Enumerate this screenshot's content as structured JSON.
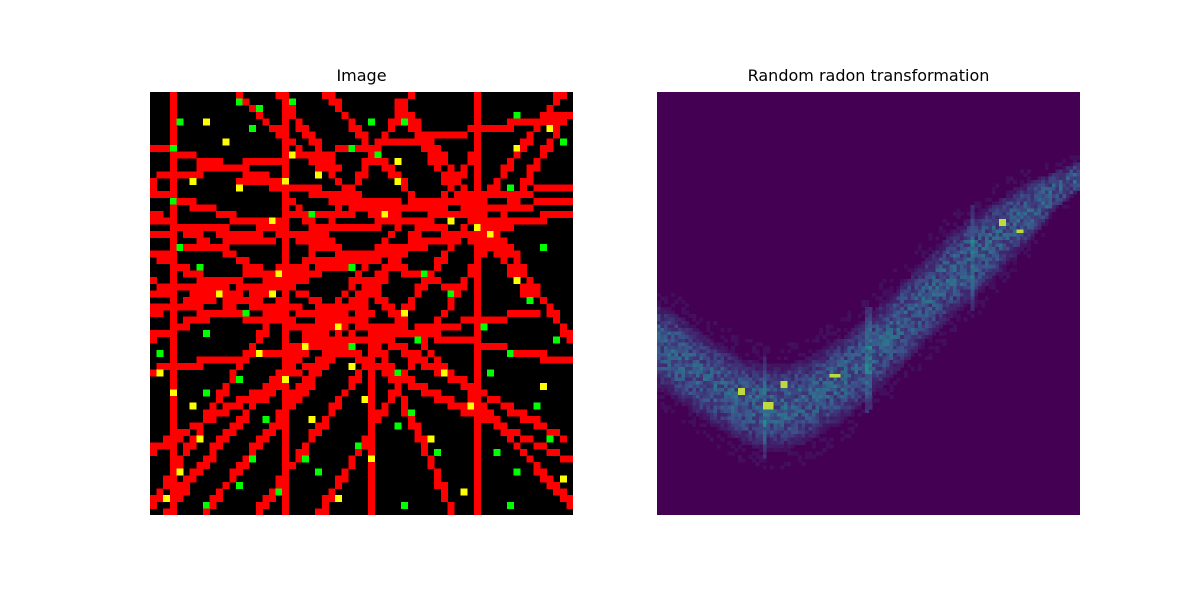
{
  "chart_data": [
    {
      "type": "heatmap",
      "title": "Image",
      "grid_size": 64,
      "colors": {
        "background": "#000000",
        "line": "#ff0000",
        "point": "#00ff00",
        "intersection": "#ffff00"
      },
      "lines": [
        [
          0.0,
          0.98,
          0.62,
          0.0
        ],
        [
          0.03,
          1.0,
          0.6,
          0.3
        ],
        [
          0.07,
          0.93,
          0.57,
          0.4
        ],
        [
          0.12,
          1.0,
          0.52,
          0.52
        ],
        [
          0.22,
          0.88,
          0.78,
          0.13
        ],
        [
          0.25,
          1.0,
          0.98,
          0.0
        ],
        [
          0.4,
          1.0,
          1.0,
          0.04
        ],
        [
          0.0,
          0.2,
          1.0,
          0.05
        ],
        [
          0.0,
          0.33,
          1.0,
          0.22
        ],
        [
          0.0,
          0.38,
          1.0,
          0.25
        ],
        [
          0.0,
          0.48,
          1.0,
          0.28
        ],
        [
          0.0,
          0.52,
          0.8,
          0.32
        ],
        [
          0.0,
          0.58,
          0.48,
          0.39
        ],
        [
          0.0,
          0.66,
          0.92,
          0.52
        ],
        [
          0.0,
          0.12,
          0.88,
          0.38
        ],
        [
          0.0,
          0.23,
          0.72,
          0.46
        ],
        [
          0.0,
          0.38,
          1.0,
          0.88
        ],
        [
          0.0,
          0.28,
          0.98,
          0.82
        ],
        [
          0.0,
          0.45,
          1.0,
          0.64
        ],
        [
          0.3,
          0.22,
          1.0,
          0.98
        ],
        [
          0.0,
          0.5,
          0.4,
          0.56
        ],
        [
          0.2,
          0.0,
          0.53,
          0.28
        ],
        [
          0.3,
          0.0,
          0.44,
          0.18
        ],
        [
          0.42,
          0.0,
          0.63,
          0.25
        ],
        [
          0.58,
          0.02,
          0.9,
          0.48
        ],
        [
          0.62,
          0.05,
          1.0,
          0.58
        ],
        [
          0.2,
          0.2,
          0.84,
          0.3
        ],
        [
          0.0,
          0.3,
          0.25,
          0.34
        ],
        [
          0.0,
          0.85,
          0.43,
          0.62
        ],
        [
          0.04,
          0.0,
          0.04,
          1.0
        ],
        [
          0.31,
          0.0,
          0.31,
          1.0
        ],
        [
          0.78,
          0.0,
          0.78,
          1.0
        ],
        [
          0.53,
          0.58,
          0.53,
          1.0
        ],
        [
          0.53,
          0.58,
          0.72,
          1.0
        ]
      ],
      "points": [
        [
          0.21,
          0.02,
          "g"
        ],
        [
          0.25,
          0.03,
          "g"
        ],
        [
          0.33,
          0.01,
          "g"
        ],
        [
          0.07,
          0.06,
          "g"
        ],
        [
          0.12,
          0.07,
          "y"
        ],
        [
          0.24,
          0.08,
          "g"
        ],
        [
          0.52,
          0.06,
          "g"
        ],
        [
          0.61,
          0.07,
          "g"
        ],
        [
          0.87,
          0.05,
          "g"
        ],
        [
          0.95,
          0.08,
          "y"
        ],
        [
          0.04,
          0.13,
          "g"
        ],
        [
          0.18,
          0.11,
          "y"
        ],
        [
          0.33,
          0.14,
          "y"
        ],
        [
          0.47,
          0.13,
          "g"
        ],
        [
          0.54,
          0.15,
          "g"
        ],
        [
          0.4,
          0.19,
          "y"
        ],
        [
          0.59,
          0.16,
          "y"
        ],
        [
          0.88,
          0.13,
          "y"
        ],
        [
          0.98,
          0.11,
          "g"
        ],
        [
          0.04,
          0.26,
          "g"
        ],
        [
          0.2,
          0.23,
          "y"
        ],
        [
          0.31,
          0.21,
          "y"
        ],
        [
          0.59,
          0.21,
          "y"
        ],
        [
          0.77,
          0.31,
          "y"
        ],
        [
          0.85,
          0.22,
          "g"
        ],
        [
          0.1,
          0.2,
          "y"
        ],
        [
          0.28,
          0.3,
          "y"
        ],
        [
          0.38,
          0.28,
          "g"
        ],
        [
          0.55,
          0.29,
          "y"
        ],
        [
          0.72,
          0.3,
          "y"
        ],
        [
          0.81,
          0.33,
          "y"
        ],
        [
          0.94,
          0.36,
          "g"
        ],
        [
          0.06,
          0.36,
          "g"
        ],
        [
          0.11,
          0.41,
          "g"
        ],
        [
          0.16,
          0.47,
          "y"
        ],
        [
          0.3,
          0.43,
          "y"
        ],
        [
          0.48,
          0.41,
          "g"
        ],
        [
          0.65,
          0.43,
          "g"
        ],
        [
          0.87,
          0.44,
          "y"
        ],
        [
          0.91,
          0.49,
          "g"
        ],
        [
          0.22,
          0.53,
          "g"
        ],
        [
          0.29,
          0.47,
          "y"
        ],
        [
          0.45,
          0.55,
          "y"
        ],
        [
          0.6,
          0.53,
          "y"
        ],
        [
          0.71,
          0.48,
          "g"
        ],
        [
          0.79,
          0.55,
          "g"
        ],
        [
          0.97,
          0.58,
          "g"
        ],
        [
          0.02,
          0.62,
          "g"
        ],
        [
          0.13,
          0.57,
          "g"
        ],
        [
          0.26,
          0.62,
          "y"
        ],
        [
          0.36,
          0.6,
          "y"
        ],
        [
          0.48,
          0.61,
          "g"
        ],
        [
          0.64,
          0.59,
          "g"
        ],
        [
          0.7,
          0.66,
          "y"
        ],
        [
          0.86,
          0.62,
          "g"
        ],
        [
          0.01,
          0.66,
          "y"
        ],
        [
          0.12,
          0.71,
          "g"
        ],
        [
          0.21,
          0.68,
          "g"
        ],
        [
          0.32,
          0.69,
          "y"
        ],
        [
          0.47,
          0.65,
          "y"
        ],
        [
          0.58,
          0.66,
          "g"
        ],
        [
          0.81,
          0.67,
          "g"
        ],
        [
          0.94,
          0.7,
          "y"
        ],
        [
          0.05,
          0.72,
          "y"
        ],
        [
          0.09,
          0.75,
          "y"
        ],
        [
          0.27,
          0.77,
          "g"
        ],
        [
          0.38,
          0.78,
          "y"
        ],
        [
          0.51,
          0.73,
          "y"
        ],
        [
          0.62,
          0.76,
          "g"
        ],
        [
          0.76,
          0.75,
          "y"
        ],
        [
          0.92,
          0.74,
          "g"
        ],
        [
          0.11,
          0.83,
          "y"
        ],
        [
          0.24,
          0.87,
          "g"
        ],
        [
          0.37,
          0.87,
          "g"
        ],
        [
          0.49,
          0.84,
          "g"
        ],
        [
          0.58,
          0.79,
          "g"
        ],
        [
          0.67,
          0.82,
          "y"
        ],
        [
          0.83,
          0.86,
          "g"
        ],
        [
          0.96,
          0.83,
          "g"
        ],
        [
          0.06,
          0.91,
          "y"
        ],
        [
          0.2,
          0.94,
          "g"
        ],
        [
          0.4,
          0.9,
          "g"
        ],
        [
          0.52,
          0.88,
          "y"
        ],
        [
          0.69,
          0.86,
          "g"
        ],
        [
          0.88,
          0.9,
          "g"
        ],
        [
          0.98,
          0.92,
          "y"
        ],
        [
          0.03,
          0.97,
          "y"
        ],
        [
          0.13,
          0.99,
          "g"
        ],
        [
          0.3,
          0.95,
          "g"
        ],
        [
          0.44,
          0.97,
          "y"
        ],
        [
          0.6,
          0.99,
          "g"
        ],
        [
          0.75,
          0.95,
          "y"
        ],
        [
          0.86,
          0.98,
          "g"
        ]
      ]
    },
    {
      "type": "heatmap",
      "title": "Random radon transformation",
      "colormap": "viridis",
      "n_columns": 120,
      "background": "#440154",
      "band": {
        "center": [
          0.6,
          0.63,
          0.67,
          0.7,
          0.73,
          0.745,
          0.745,
          0.73,
          0.7,
          0.67,
          0.63,
          0.58,
          0.53,
          0.48,
          0.43,
          0.39,
          0.35,
          0.31,
          0.27,
          0.23,
          0.2
        ],
        "half_width": [
          0.11,
          0.11,
          0.11,
          0.11,
          0.11,
          0.11,
          0.11,
          0.11,
          0.11,
          0.11,
          0.11,
          0.11,
          0.11,
          0.11,
          0.11,
          0.11,
          0.1,
          0.09,
          0.07,
          0.05,
          0.04
        ]
      },
      "bright_streaks": [
        0.25,
        0.5,
        0.75
      ],
      "hot_spots": [
        [
          0.2,
          0.71
        ],
        [
          0.26,
          0.74
        ],
        [
          0.3,
          0.69
        ],
        [
          0.42,
          0.67
        ],
        [
          0.86,
          0.33
        ],
        [
          0.82,
          0.31
        ]
      ]
    }
  ]
}
